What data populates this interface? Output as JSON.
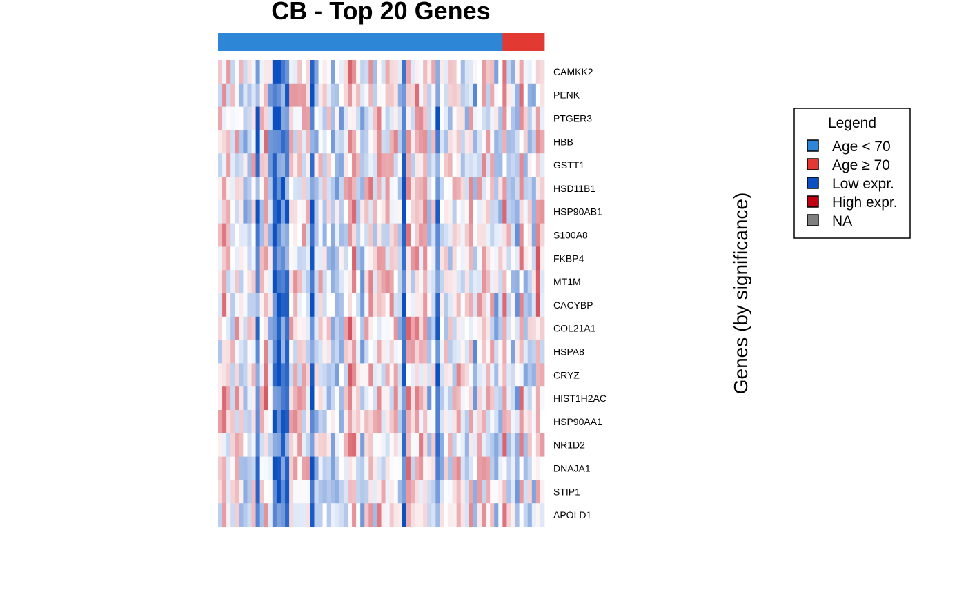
{
  "chart_data": {
    "type": "heatmap",
    "title": "CB - Top 20 Genes",
    "ylabel": "Genes (by significance)",
    "genes": [
      "CAMKK2",
      "PENK",
      "PTGER3",
      "HBB",
      "GSTT1",
      "HSD11B1",
      "HSP90AB1",
      "S100A8",
      "FKBP4",
      "MT1M",
      "CACYBP",
      "COL21A1",
      "HSPA8",
      "CRYZ",
      "HIST1H2AC",
      "HSP90AA1",
      "NR1D2",
      "DNAJA1",
      "STIP1",
      "APOLD1"
    ],
    "samples": {
      "count": 78,
      "age_under_70_count": 68,
      "age_70_plus_count": 10
    },
    "annotation_colors": {
      "age_under_70": "#2e86d6",
      "age_70_plus": "#e23a32"
    },
    "color_scale": {
      "low": "#0b4fc0",
      "mid": "#ffffff",
      "high": "#c00010",
      "range": [
        -1.5,
        1.5
      ]
    },
    "strong_blue_columns": [
      9,
      13,
      14,
      15,
      16,
      22,
      44,
      52
    ],
    "values": []
  },
  "legend": {
    "title": "Legend",
    "items": [
      {
        "label": "Age < 70",
        "color": "#2e86d6"
      },
      {
        "label": "Age ≥ 70",
        "color": "#e23a32"
      },
      {
        "label": "Low expr.",
        "color": "#0b4fc0"
      },
      {
        "label": "High expr.",
        "color": "#c00010"
      },
      {
        "label": "NA",
        "color": "#7f7f7f"
      }
    ]
  }
}
